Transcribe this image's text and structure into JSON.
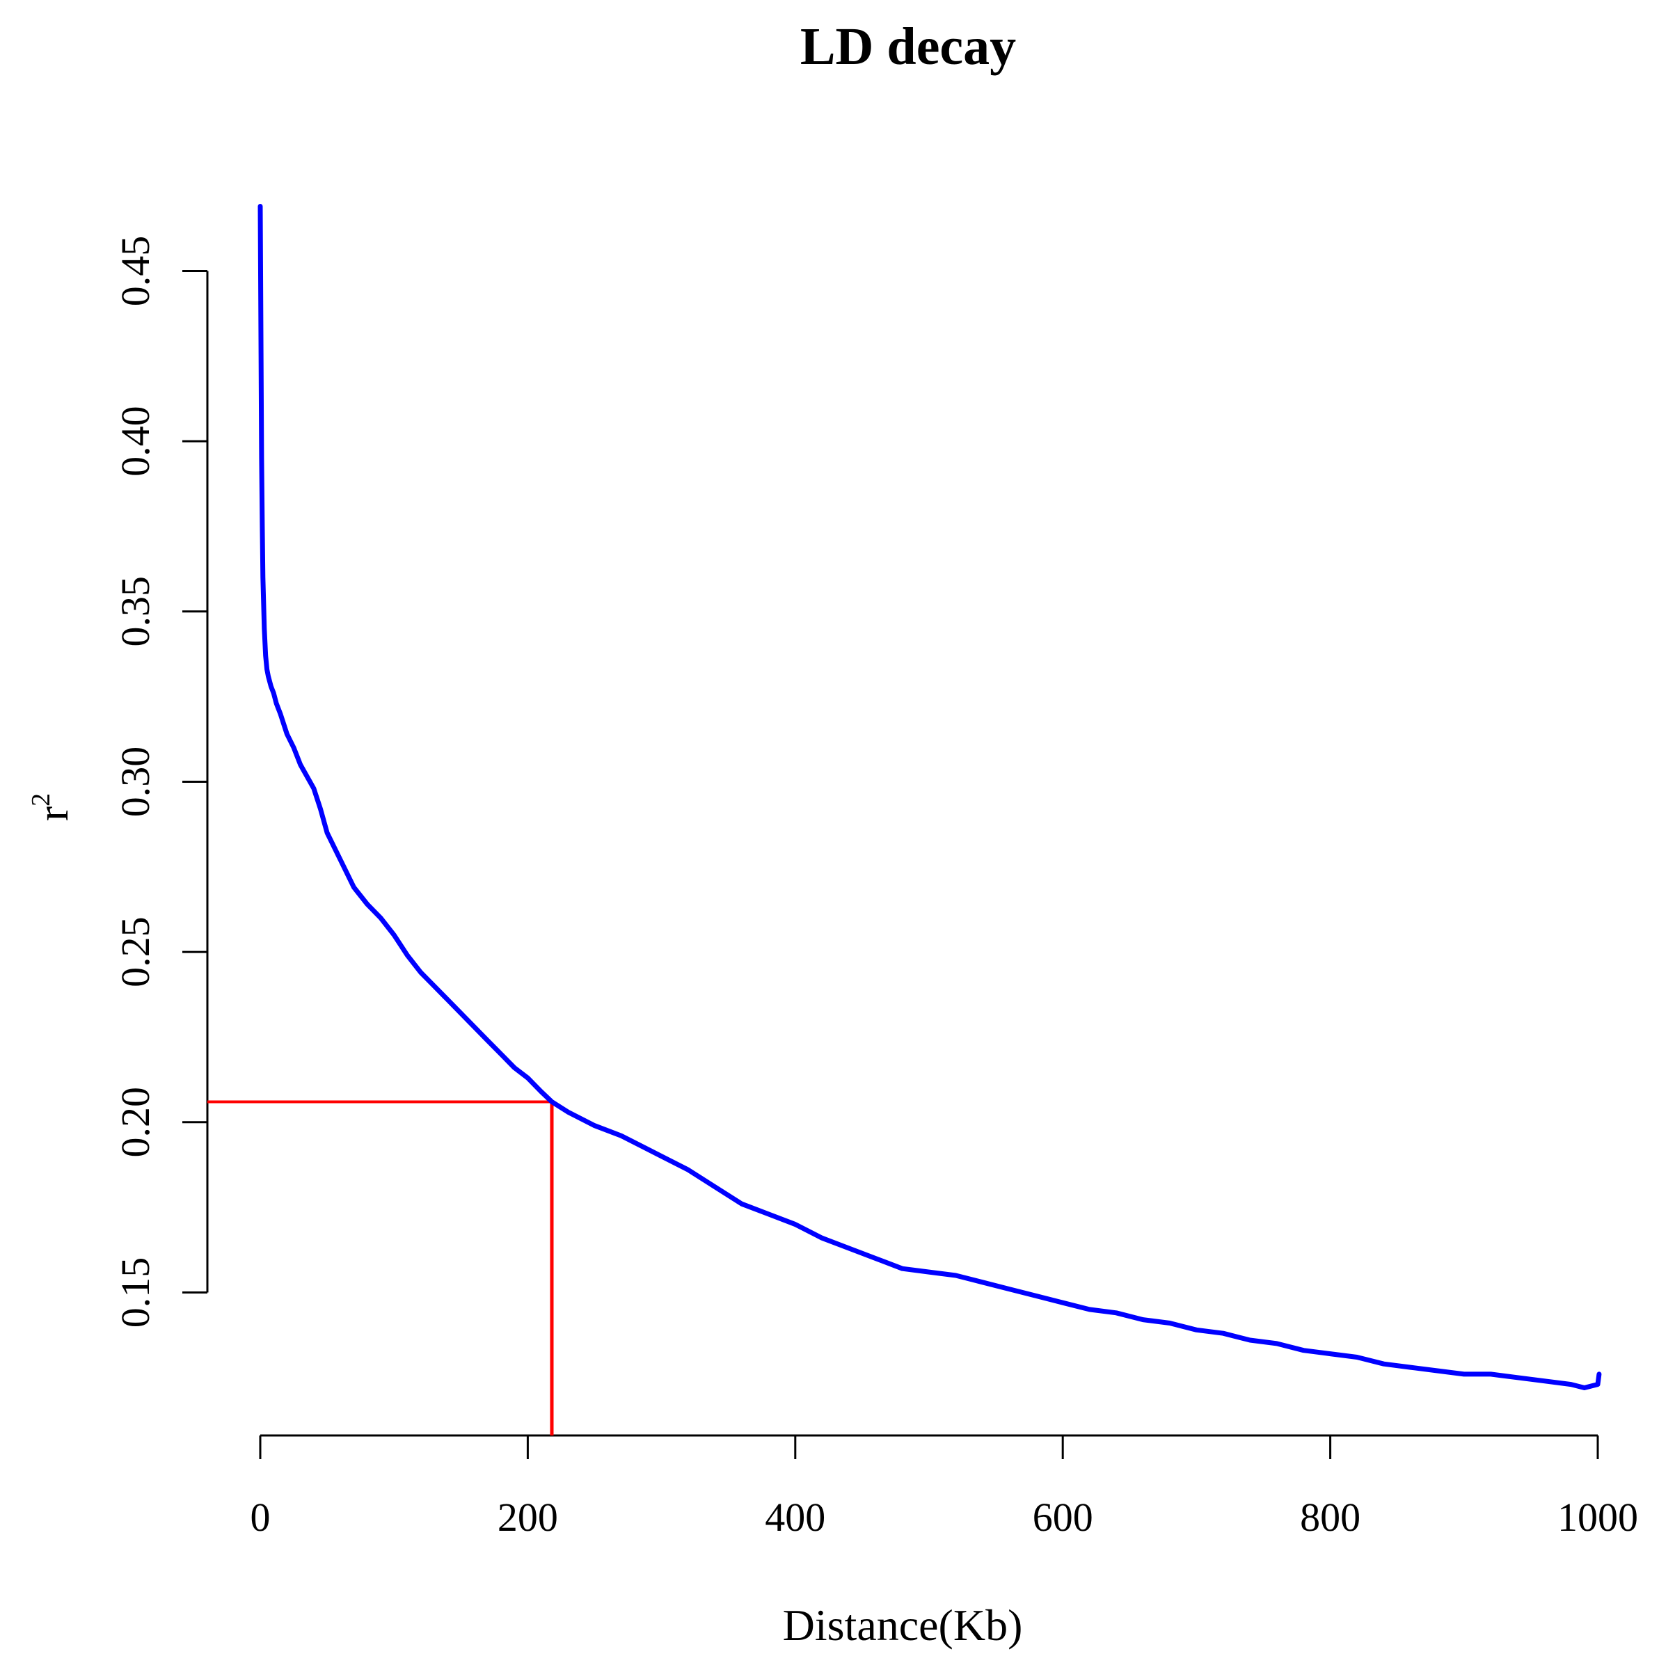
{
  "chart_data": {
    "type": "line",
    "title": "LD decay",
    "xlabel": "Distance(Kb)",
    "ylabel": "r",
    "ylabel_superscript": "2",
    "xlim": [
      0,
      1000
    ],
    "ylim": [
      0.108,
      0.474
    ],
    "x_ticks": [
      0,
      200,
      400,
      600,
      800,
      1000
    ],
    "x_tick_labels": [
      "0",
      "200",
      "400",
      "600",
      "800",
      "1000"
    ],
    "y_ticks": [
      0.15,
      0.2,
      0.25,
      0.3,
      0.35,
      0.4,
      0.45
    ],
    "y_tick_labels": [
      "0.15",
      "0.20",
      "0.25",
      "0.30",
      "0.35",
      "0.40",
      "0.45"
    ],
    "grid": false,
    "series": [
      {
        "color": "#0000FF",
        "x": [
          0,
          0.5,
          1,
          1.5,
          2,
          3,
          4,
          5,
          6,
          8,
          10,
          12,
          15,
          20,
          25,
          30,
          40,
          45,
          50,
          60,
          70,
          80,
          90,
          100,
          110,
          120,
          130,
          140,
          150,
          160,
          170,
          180,
          190,
          200,
          210,
          218,
          230,
          250,
          270,
          300,
          320,
          340,
          360,
          380,
          400,
          420,
          440,
          460,
          480,
          500,
          520,
          540,
          560,
          580,
          600,
          620,
          640,
          660,
          680,
          700,
          720,
          740,
          760,
          780,
          800,
          820,
          840,
          860,
          880,
          900,
          920,
          940,
          960,
          980,
          990,
          1000,
          1001
        ],
        "y": [
          0.469,
          0.43,
          0.395,
          0.375,
          0.36,
          0.345,
          0.337,
          0.333,
          0.331,
          0.328,
          0.326,
          0.323,
          0.32,
          0.314,
          0.31,
          0.305,
          0.298,
          0.292,
          0.285,
          0.277,
          0.269,
          0.264,
          0.26,
          0.255,
          0.249,
          0.244,
          0.24,
          0.236,
          0.232,
          0.228,
          0.224,
          0.22,
          0.216,
          0.213,
          0.209,
          0.206,
          0.203,
          0.199,
          0.196,
          0.19,
          0.186,
          0.181,
          0.176,
          0.173,
          0.17,
          0.166,
          0.163,
          0.16,
          0.157,
          0.156,
          0.155,
          0.153,
          0.151,
          0.149,
          0.147,
          0.145,
          0.144,
          0.142,
          0.141,
          0.139,
          0.138,
          0.136,
          0.135,
          0.133,
          0.132,
          0.131,
          0.129,
          0.128,
          0.127,
          0.126,
          0.126,
          0.125,
          0.124,
          0.123,
          0.122,
          0.123,
          0.126
        ]
      }
    ],
    "reference_lines": {
      "color": "#FF0000",
      "x": 218,
      "y": 0.206
    }
  }
}
